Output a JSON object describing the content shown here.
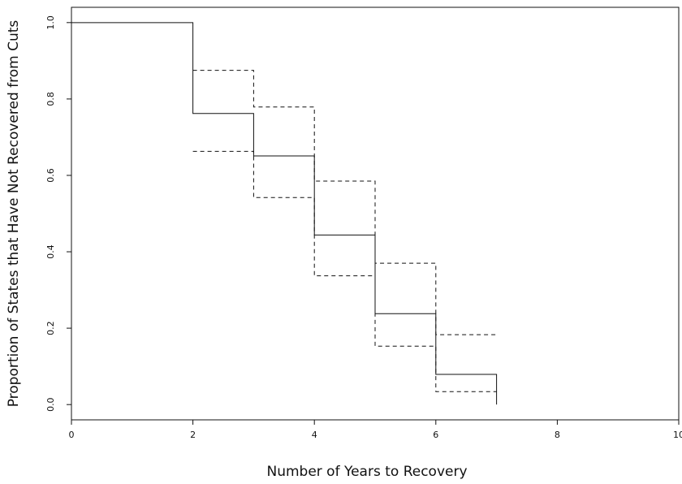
{
  "chart_data": {
    "type": "line",
    "title": "",
    "xlabel": "Number of Years to Recovery",
    "ylabel": "Proportion of States that Have Not Recovered from Cuts",
    "xlim": [
      0,
      10
    ],
    "ylim": [
      -0.04,
      1.04
    ],
    "x_ticks": [
      0,
      2,
      4,
      6,
      8,
      10
    ],
    "x_tick_labels": [
      "0",
      "2",
      "4",
      "6",
      "8",
      "10"
    ],
    "y_ticks": [
      0.0,
      0.2,
      0.4,
      0.6,
      0.8,
      1.0
    ],
    "y_tick_labels": [
      "0.0",
      "0.2",
      "0.4",
      "0.6",
      "0.8",
      "1.0"
    ],
    "grid": false,
    "legend": "none",
    "series": [
      {
        "style": "solid",
        "x": [
          0,
          2,
          3,
          4,
          5,
          6,
          7
        ],
        "y": [
          1.0,
          0.762,
          0.651,
          0.444,
          0.238,
          0.079,
          0.0
        ]
      },
      {
        "style": "dashed",
        "x": [
          2,
          3,
          4,
          5,
          6,
          7
        ],
        "y": [
          0.875,
          0.779,
          0.585,
          0.37,
          0.183,
          0.183
        ]
      },
      {
        "style": "dashed",
        "x": [
          2,
          3,
          4,
          5,
          6,
          7
        ],
        "y": [
          0.663,
          0.542,
          0.337,
          0.153,
          0.034,
          0.034
        ]
      }
    ]
  }
}
